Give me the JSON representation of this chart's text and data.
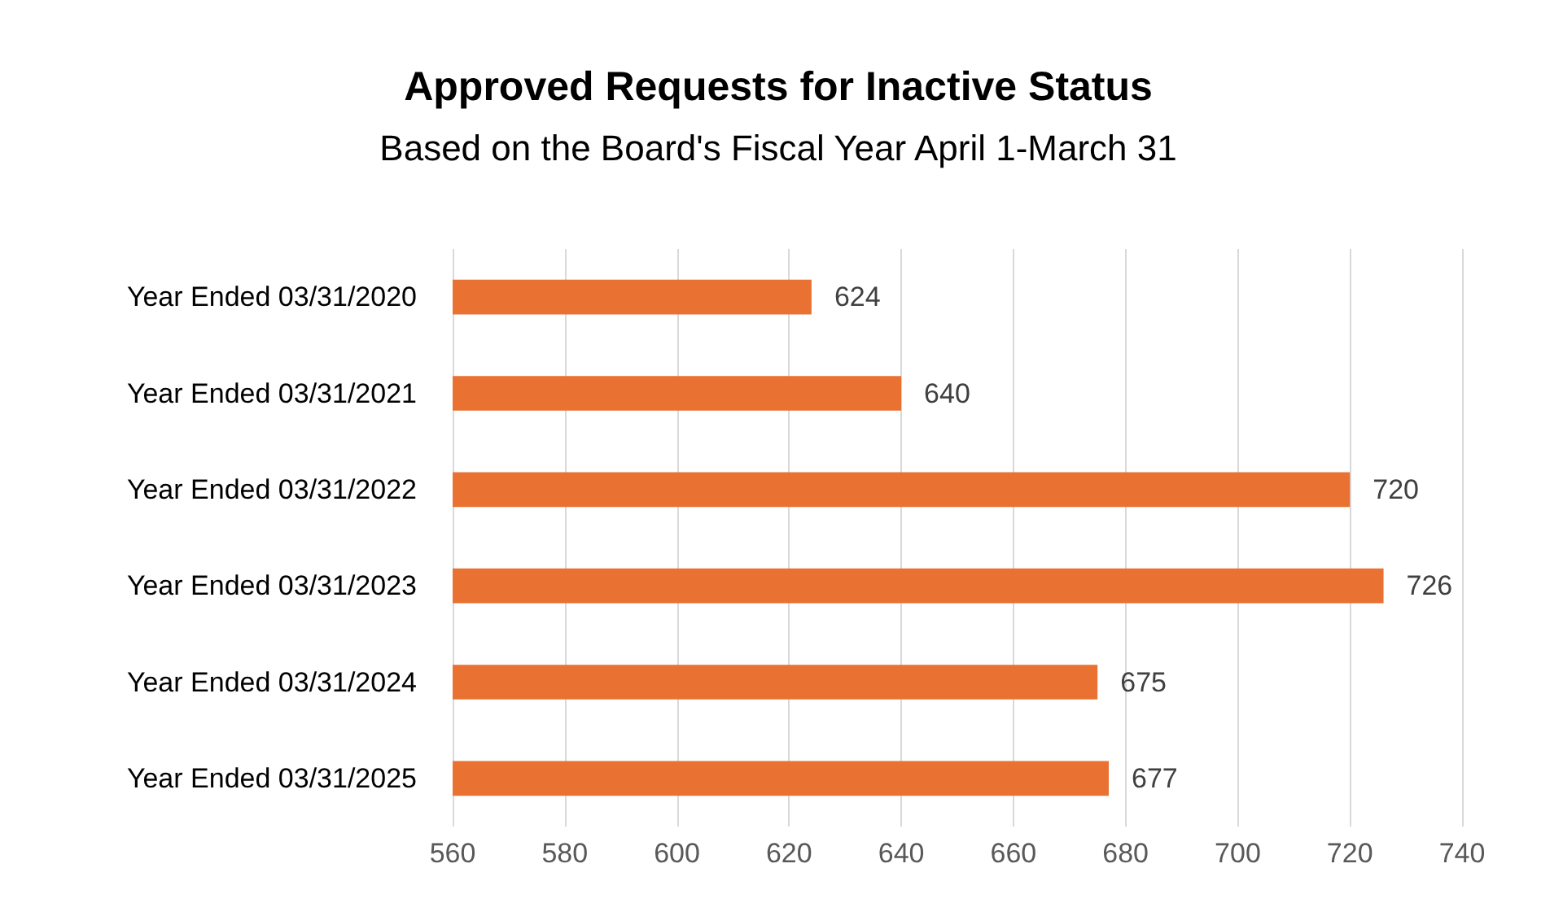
{
  "chart_data": {
    "type": "bar",
    "orientation": "horizontal",
    "title": "Approved Requests for Inactive Status",
    "subtitle": "Based on the Board's Fiscal Year April 1-March 31",
    "categories": [
      "Year Ended 03/31/2020",
      "Year Ended 03/31/2021",
      "Year Ended 03/31/2022",
      "Year Ended 03/31/2023",
      "Year Ended 03/31/2024",
      "Year Ended 03/31/2025"
    ],
    "values": [
      624,
      640,
      720,
      726,
      675,
      677
    ],
    "color": "#e97132",
    "xlim": [
      560,
      740
    ],
    "xticks": [
      560,
      580,
      600,
      620,
      640,
      660,
      680,
      700,
      720,
      740
    ],
    "grid": "x",
    "data_labels": true
  }
}
